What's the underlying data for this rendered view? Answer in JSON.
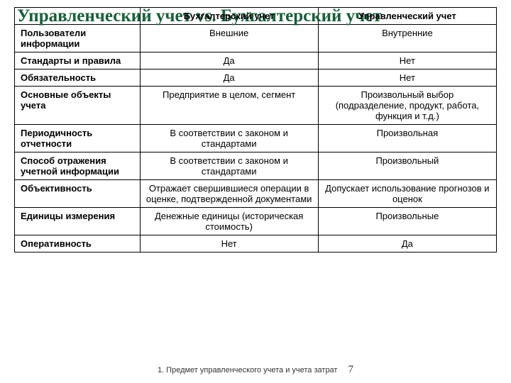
{
  "title": "Управленческий учет vs. Бухгалтерский учет",
  "footer": {
    "text": "1. Предмет управленческого учета и учета затрат",
    "page": "7"
  },
  "table": {
    "type": "table",
    "header_font_weight": "bold",
    "cell_font_size": 13,
    "columns": [
      {
        "label": "",
        "width": "26%",
        "align": "left"
      },
      {
        "label": "Бухгалтерский учет",
        "width": "37%",
        "align": "center"
      },
      {
        "label": "Управленческий учет",
        "width": "37%",
        "align": "center"
      }
    ],
    "rows": [
      {
        "criterion": "Пользователи информации",
        "accounting": "Внешние",
        "management": "Внутренние"
      },
      {
        "criterion": "Стандарты и правила",
        "accounting": "Да",
        "management": "Нет"
      },
      {
        "criterion": "Обязательность",
        "accounting": "Да",
        "management": "Нет"
      },
      {
        "criterion": "Основные объекты учета",
        "accounting": "Предприятие в целом, сегмент",
        "management": "Произвольный выбор (подразделение, продукт, работа, функция и т.д.)"
      },
      {
        "criterion": "Периодичность отчетности",
        "accounting": "В соответствии с законом и стандартами",
        "management": "Произвольная"
      },
      {
        "criterion": "Способ отражения учетной информации",
        "accounting": "В соответствии с законом и стандартами",
        "management": "Произвольный"
      },
      {
        "criterion": "Объективность",
        "accounting": "Отражает свершившиеся операции в оценке, подтвержденной документами",
        "management": "Допускает использование прогнозов и оценок"
      },
      {
        "criterion": "Единицы измерения",
        "accounting": "Денежные единицы (историческая стоимость)",
        "management": "Произвольные"
      },
      {
        "criterion": "Оперативность",
        "accounting": "Нет",
        "management": "Да"
      }
    ],
    "border_color": "#000000",
    "background_color": "#ffffff"
  },
  "colors": {
    "title_color": "#1a5d3a",
    "border_color": "#000000",
    "background": "#ffffff",
    "footer_text": "#333333"
  }
}
